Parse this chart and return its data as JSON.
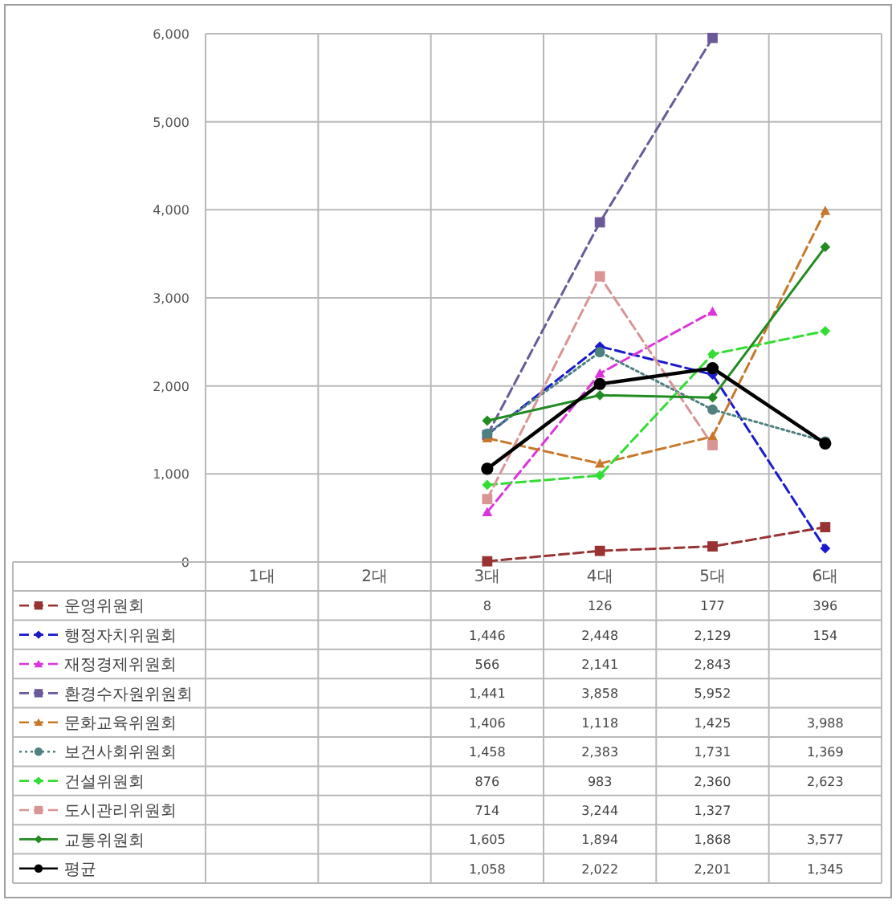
{
  "chart_data": {
    "type": "line",
    "categories": [
      "1대",
      "2대",
      "3대",
      "4대",
      "5대",
      "6대"
    ],
    "ylim": [
      0,
      6000
    ],
    "yticks": [
      0,
      {
        "value": 1000,
        "label": "1,000"
      },
      {
        "value": 2000,
        "label": "2,000"
      },
      {
        "value": 3000,
        "label": "3,000"
      },
      {
        "value": 4000,
        "label": "4,000"
      },
      {
        "value": 5000,
        "label": "5,000"
      },
      {
        "value": 6000,
        "label": "6,000"
      }
    ],
    "grid": true,
    "legend": "bottom",
    "series": [
      {
        "name": "운영위원회",
        "color": "#993333",
        "line_style": "dashed",
        "marker": "square",
        "values": [
          null,
          null,
          8,
          126,
          177,
          396
        ],
        "value_labels": [
          null,
          null,
          "8",
          "126",
          "177",
          "396"
        ]
      },
      {
        "name": "행정자치위원회",
        "color": "#1a1acc",
        "line_style": "dashed",
        "marker": "diamond",
        "values": [
          null,
          null,
          1446,
          2448,
          2129,
          154
        ],
        "value_labels": [
          null,
          null,
          "1,446",
          "2,448",
          "2,129",
          "154"
        ]
      },
      {
        "name": "재정경제위원회",
        "color": "#dd33dd",
        "line_style": "dashed",
        "marker": "triangle",
        "values": [
          null,
          null,
          566,
          2141,
          2843,
          null
        ],
        "value_labels": [
          null,
          null,
          "566",
          "2,141",
          "2,843",
          null
        ]
      },
      {
        "name": "환경수자원위원회",
        "color": "#6a5a9a",
        "line_style": "dashed",
        "marker": "square",
        "values": [
          null,
          null,
          1441,
          3858,
          5952,
          null
        ],
        "value_labels": [
          null,
          null,
          "1,441",
          "3,858",
          "5,952",
          null
        ]
      },
      {
        "name": "문화교육위원회",
        "color": "#c8782a",
        "line_style": "dashed",
        "marker": "triangle",
        "values": [
          null,
          null,
          1406,
          1118,
          1425,
          3988
        ],
        "value_labels": [
          null,
          null,
          "1,406",
          "1,118",
          "1,425",
          "3,988"
        ]
      },
      {
        "name": "보건사회위원회",
        "color": "#4f8080",
        "line_style": "dotted",
        "marker": "circle",
        "values": [
          null,
          null,
          1458,
          2383,
          1731,
          1369
        ],
        "value_labels": [
          null,
          null,
          "1,458",
          "2,383",
          "1,731",
          "1,369"
        ]
      },
      {
        "name": "건설위원회",
        "color": "#33dd33",
        "line_style": "dashed",
        "marker": "diamond",
        "values": [
          null,
          null,
          876,
          983,
          2360,
          2623
        ],
        "value_labels": [
          null,
          null,
          "876",
          "983",
          "2,360",
          "2,623"
        ]
      },
      {
        "name": "도시관리위원회",
        "color": "#d99494",
        "line_style": "dashed",
        "marker": "square",
        "values": [
          null,
          null,
          714,
          3244,
          1327,
          null
        ],
        "value_labels": [
          null,
          null,
          "714",
          "3,244",
          "1,327",
          null
        ]
      },
      {
        "name": "교통위원회",
        "color": "#228b22",
        "line_style": "solid",
        "marker": "diamond",
        "values": [
          null,
          null,
          1605,
          1894,
          1868,
          3577
        ],
        "value_labels": [
          null,
          null,
          "1,605",
          "1,894",
          "1,868",
          "3,577"
        ]
      },
      {
        "name": "평균",
        "color": "#000000",
        "line_style": "solid",
        "marker": "circle",
        "values": [
          null,
          null,
          1058,
          2022,
          2201,
          1345
        ],
        "value_labels": [
          null,
          null,
          "1,058",
          "2,022",
          "2,201",
          "1,345"
        ]
      }
    ]
  }
}
